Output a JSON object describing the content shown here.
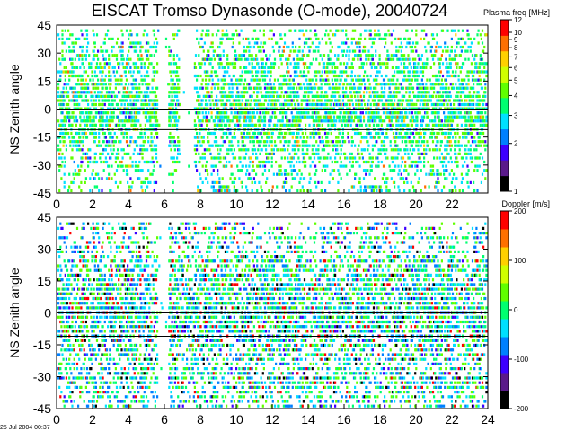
{
  "title": "EISCAT Tromso Dynasonde (O-mode),  20040724",
  "footer": "25 Jul 2004 00:37",
  "chart_data": [
    {
      "type": "heatmap",
      "panel": "top",
      "ylabel": "NS Zenith angle",
      "xlabel": "",
      "xlim": [
        0,
        24
      ],
      "ylim": [
        -45,
        45
      ],
      "xticks": [
        "0",
        "2",
        "4",
        "6",
        "8",
        "10",
        "12",
        "14",
        "16",
        "18",
        "20",
        "22"
      ],
      "yticks": [
        "45",
        "30",
        "15",
        "0",
        "-15",
        "-30",
        "-45"
      ],
      "reference_lines": [
        0,
        -11
      ],
      "colorbar": {
        "label": "Plasma freq [MHz]",
        "scale": "log",
        "range": [
          1,
          12
        ],
        "ticks": [
          "12",
          "10",
          "9",
          "8",
          "7",
          "6",
          "5",
          "4",
          "3",
          "2",
          "1"
        ],
        "colors": [
          "#000000",
          "#5a1a8a",
          "#3d00ff",
          "#0080ff",
          "#00e0ff",
          "#00ff70",
          "#60ff00",
          "#d0ff00",
          "#ffd000",
          "#ff7000",
          "#ff0000"
        ]
      },
      "data_gaps_hours": [
        [
          5.6,
          6.2
        ],
        [
          6.8,
          7.6
        ]
      ]
    },
    {
      "type": "heatmap",
      "panel": "bottom",
      "ylabel": "NS Zenith angle",
      "xlabel": "",
      "xlim": [
        0,
        24
      ],
      "ylim": [
        -45,
        45
      ],
      "xticks": [
        "0",
        "2",
        "4",
        "6",
        "8",
        "10",
        "12",
        "14",
        "16",
        "18",
        "20",
        "22",
        "24"
      ],
      "yticks": [
        "45",
        "30",
        "15",
        "0",
        "-15",
        "-30",
        "-45"
      ],
      "reference_lines": [
        0,
        -11
      ],
      "colorbar": {
        "label": "Doppler [m/s]",
        "scale": "linear",
        "range": [
          -200,
          200
        ],
        "ticks": [
          "200",
          "100",
          "0",
          "-100",
          "-200"
        ],
        "colors": [
          "#000000",
          "#5a1a8a",
          "#3d00ff",
          "#0080ff",
          "#00e0ff",
          "#00ff70",
          "#60ff00",
          "#d0ff00",
          "#ffd000",
          "#ff7000",
          "#ff0000"
        ]
      },
      "data_gaps_hours": [
        [
          5.6,
          6.2
        ]
      ]
    }
  ]
}
